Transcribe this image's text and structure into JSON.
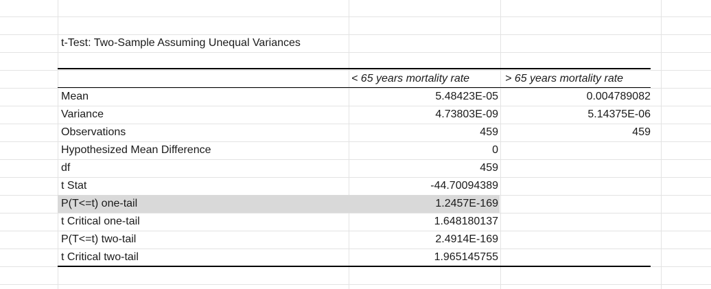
{
  "title": "t-Test: Two-Sample Assuming Unequal Variances",
  "columns": [
    "< 65 years mortality rate",
    "> 65 years mortality rate"
  ],
  "rows": [
    {
      "label": "Mean",
      "v1": "5.48423E-05",
      "v2": "0.004789082"
    },
    {
      "label": "Variance",
      "v1": "4.73803E-09",
      "v2": "5.14375E-06"
    },
    {
      "label": "Observations",
      "v1": "459",
      "v2": "459"
    },
    {
      "label": "Hypothesized Mean Difference",
      "v1": "0",
      "v2": ""
    },
    {
      "label": "df",
      "v1": "459",
      "v2": ""
    },
    {
      "label": "t Stat",
      "v1": "-44.70094389",
      "v2": ""
    },
    {
      "label": "P(T<=t) one-tail",
      "v1": "1.2457E-169",
      "v2": ""
    },
    {
      "label": "t Critical one-tail",
      "v1": "1.648180137",
      "v2": ""
    },
    {
      "label": "P(T<=t) two-tail",
      "v1": "2.4914E-169",
      "v2": ""
    },
    {
      "label": "t Critical two-tail",
      "v1": "1.965145755",
      "v2": ""
    }
  ],
  "colors": {
    "gridline": "#e3e3e3",
    "selected_row": "#d9d9d9"
  }
}
